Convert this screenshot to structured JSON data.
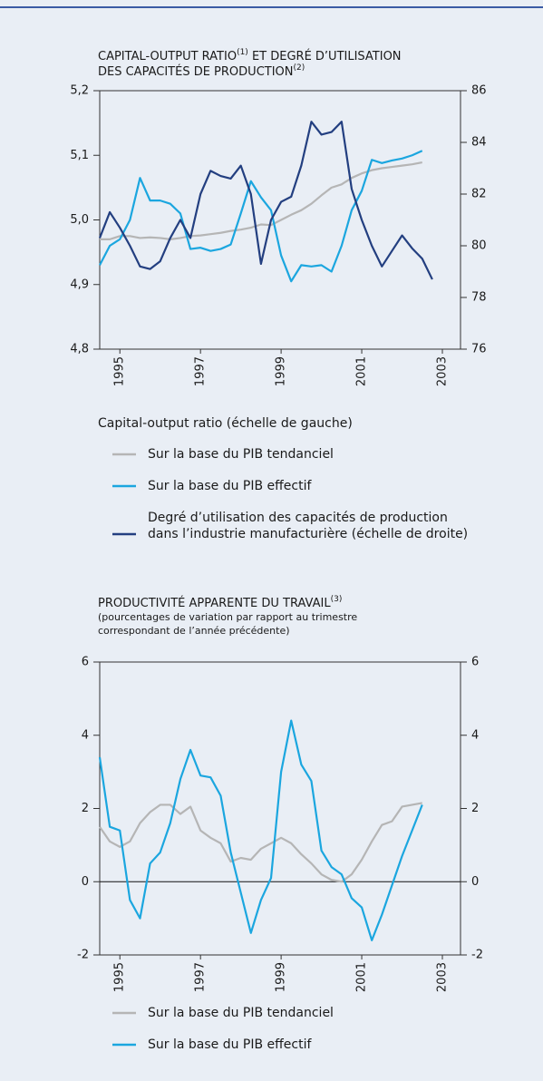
{
  "chart_data": [
    {
      "type": "line",
      "title": [
        [
          "CAPITAL-OUTPUT RATIO",
          "(1)",
          " ET DEGRÉ D’UTILISATION"
        ],
        [
          "DES CAPACITÉS DE PRODUCTION",
          "(2)"
        ]
      ],
      "legend_title": "Capital-output ratio (échelle de gauche)",
      "x": [
        1994.5,
        1994.75,
        1995,
        1995.25,
        1995.5,
        1995.75,
        1996,
        1996.25,
        1996.5,
        1996.75,
        1997,
        1997.25,
        1997.5,
        1997.75,
        1998,
        1998.25,
        1998.5,
        1998.75,
        1999,
        1999.25,
        1999.5,
        1999.75,
        2000,
        2000.25,
        2000.5,
        2000.75,
        2001,
        2001.25,
        2001.5,
        2001.75,
        2002,
        2002.25,
        2002.5,
        2002.75
      ],
      "xlim": [
        1994.5,
        2003.45
      ],
      "xticks": [
        1995,
        1997,
        1999,
        2001,
        2003
      ],
      "ylim": [
        4.8,
        5.2
      ],
      "yticks": [
        {
          "value": 4.8,
          "label": "4,8"
        },
        {
          "value": 4.9,
          "label": "4,9"
        },
        {
          "value": 5.0,
          "label": "5,0"
        },
        {
          "value": 5.1,
          "label": "5,1"
        },
        {
          "value": 5.2,
          "label": "5,2"
        }
      ],
      "y2lim": [
        76,
        86
      ],
      "y2ticks": [
        76,
        78,
        80,
        82,
        84,
        86
      ],
      "series": [
        {
          "name": "Sur la base du PIB tendanciel",
          "color": "#b5b5b5",
          "values": [
            4.97,
            4.97,
            4.975,
            4.975,
            4.972,
            4.973,
            4.972,
            4.97,
            4.972,
            4.975,
            4.976,
            4.978,
            4.98,
            4.983,
            4.985,
            4.988,
            4.993,
            4.992,
            5.0,
            5.008,
            5.015,
            5.025,
            5.038,
            5.05,
            5.055,
            5.065,
            5.072,
            5.077,
            5.08,
            5.082,
            5.084,
            5.086,
            5.089,
            null
          ]
        },
        {
          "name": "Sur la base du PIB effectif",
          "color": "#1ba6df",
          "values": [
            4.93,
            4.96,
            4.97,
            5.0,
            5.065,
            5.03,
            5.03,
            5.025,
            5.01,
            4.955,
            4.957,
            4.952,
            4.955,
            4.962,
            5.01,
            5.06,
            5.035,
            5.015,
            4.945,
            4.905,
            4.93,
            4.928,
            4.93,
            4.92,
            4.96,
            5.015,
            5.045,
            5.093,
            5.088,
            5.092,
            5.095,
            5.1,
            5.107,
            null
          ]
        },
        {
          "name": [
            "Degré d’utilisation des capacités de production",
            "dans l’industrie manufacturière (échelle de droite)"
          ],
          "color": "#233f80",
          "axis": "y2",
          "values": [
            80.3,
            81.3,
            80.7,
            80.0,
            79.2,
            79.1,
            79.4,
            80.3,
            81.0,
            80.3,
            82.0,
            82.9,
            82.7,
            82.6,
            83.1,
            82.0,
            79.3,
            81.0,
            81.7,
            81.9,
            83.1,
            84.8,
            84.3,
            84.4,
            84.8,
            82.2,
            81.0,
            80.0,
            79.2,
            79.8,
            80.4,
            79.9,
            79.5,
            78.7
          ]
        }
      ]
    },
    {
      "type": "line",
      "title": [
        [
          "PRODUCTIVITÉ APPARENTE DU TRAVAIL",
          "(3)"
        ]
      ],
      "subtitle": [
        "(pourcentages de variation par rapport au trimestre",
        "correspondant de l’année précédente)"
      ],
      "x": [
        1994.5,
        1994.75,
        1995,
        1995.25,
        1995.5,
        1995.75,
        1996,
        1996.25,
        1996.5,
        1996.75,
        1997,
        1997.25,
        1997.5,
        1997.75,
        1998,
        1998.25,
        1998.5,
        1998.75,
        1999,
        1999.25,
        1999.5,
        1999.75,
        2000,
        2000.25,
        2000.5,
        2000.75,
        2001,
        2001.25,
        2001.5,
        2001.75,
        2002,
        2002.25,
        2002.5
      ],
      "xlim": [
        1994.5,
        2003.45
      ],
      "xticks": [
        1995,
        1997,
        1999,
        2001,
        2003
      ],
      "ylim": [
        -2,
        6
      ],
      "yticks": [
        -2,
        0,
        2,
        4,
        6
      ],
      "y2lim": [
        -2,
        6
      ],
      "y2ticks": [
        -2,
        0,
        2,
        4,
        6
      ],
      "zero_line": true,
      "series": [
        {
          "name": "Sur la base du PIB tendanciel",
          "color": "#b5b5b5",
          "values": [
            1.5,
            1.1,
            0.95,
            1.1,
            1.6,
            1.9,
            2.1,
            2.1,
            1.85,
            2.05,
            1.4,
            1.2,
            1.05,
            0.55,
            0.65,
            0.6,
            0.9,
            1.05,
            1.2,
            1.05,
            0.75,
            0.5,
            0.2,
            0.05,
            0.0,
            0.2,
            0.6,
            1.1,
            1.55,
            1.65,
            2.05,
            2.1,
            2.15
          ]
        },
        {
          "name": "Sur la base du PIB effectif",
          "color": "#1ba6df",
          "values": [
            3.4,
            1.5,
            1.4,
            -0.5,
            -1.0,
            0.5,
            0.8,
            1.6,
            2.8,
            3.6,
            2.9,
            2.85,
            2.35,
            0.8,
            -0.3,
            -1.4,
            -0.5,
            0.1,
            3.0,
            4.4,
            3.2,
            2.75,
            0.85,
            0.4,
            0.2,
            -0.45,
            -0.7,
            -1.6,
            -0.9,
            -0.1,
            0.7,
            1.4,
            2.1
          ]
        }
      ]
    }
  ]
}
